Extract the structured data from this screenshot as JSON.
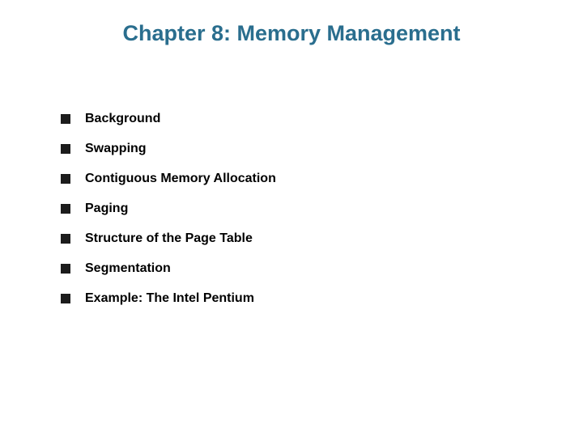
{
  "title": {
    "text": "Chapter 8:  Memory Management",
    "color": "#2a6e8e",
    "fontsize": 27
  },
  "bullets": {
    "items": [
      {
        "label": "Background"
      },
      {
        "label": "Swapping"
      },
      {
        "label": "Contiguous Memory Allocation"
      },
      {
        "label": "Paging"
      },
      {
        "label": "Structure of the Page Table"
      },
      {
        "label": "Segmentation"
      },
      {
        "label": "Example: The Intel Pentium"
      }
    ],
    "square_color": "#1c1c1c",
    "text_color": "#000000",
    "fontsize": 16
  },
  "background_color": "#ffffff"
}
